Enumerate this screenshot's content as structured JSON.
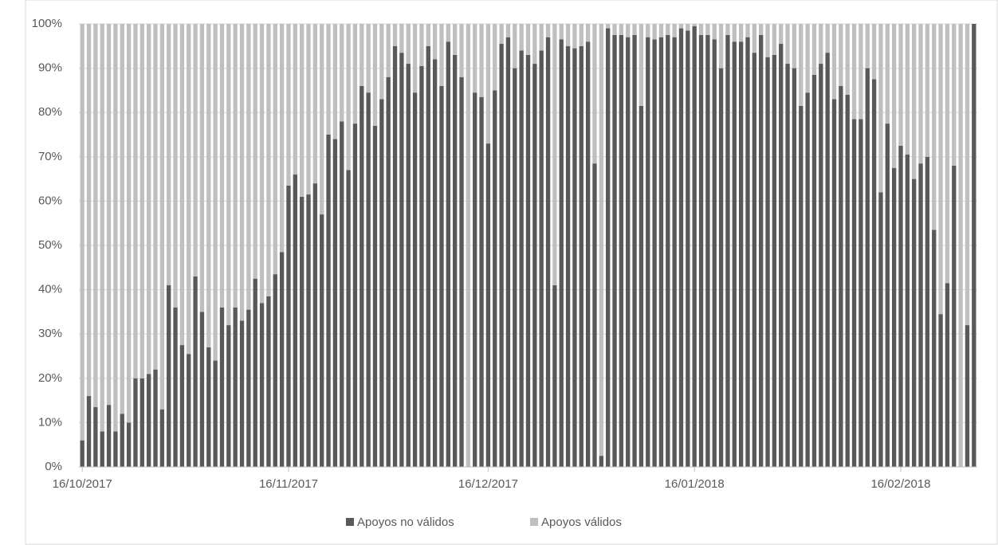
{
  "chart_data": {
    "type": "stacked_bar",
    "categories": [
      "16/10/2017",
      null,
      null,
      null,
      null,
      null,
      null,
      null,
      null,
      null,
      null,
      null,
      null,
      null,
      null,
      null,
      null,
      null,
      null,
      null,
      null,
      null,
      null,
      null,
      null,
      null,
      null,
      null,
      null,
      null,
      null,
      "16/11/2017",
      null,
      null,
      null,
      null,
      null,
      null,
      null,
      null,
      null,
      null,
      null,
      null,
      null,
      null,
      null,
      null,
      null,
      null,
      null,
      null,
      null,
      null,
      null,
      null,
      null,
      null,
      null,
      null,
      null,
      "16/12/2017",
      null,
      null,
      null,
      null,
      null,
      null,
      null,
      null,
      null,
      null,
      null,
      null,
      null,
      null,
      null,
      null,
      null,
      null,
      null,
      null,
      null,
      null,
      null,
      null,
      null,
      null,
      null,
      null,
      null,
      null,
      "16/01/2018",
      null,
      null,
      null,
      null,
      null,
      null,
      null,
      null,
      null,
      null,
      null,
      null,
      null,
      null,
      null,
      null,
      null,
      null,
      null,
      null,
      null,
      null,
      null,
      null,
      null,
      null,
      null,
      null,
      null,
      null,
      "16/02/2018",
      null,
      null,
      null,
      null,
      null,
      null,
      null,
      null,
      null,
      null,
      null
    ],
    "series": [
      {
        "name": "Apoyos no válidos",
        "color": "#595959",
        "values": [
          6,
          16,
          13.5,
          8,
          14,
          8,
          12,
          10,
          20,
          20,
          21,
          22,
          13,
          41,
          36,
          27.5,
          25.5,
          43,
          35,
          27,
          24,
          36,
          32,
          36,
          33,
          35.5,
          42.5,
          37,
          38.5,
          43.5,
          48.5,
          63.5,
          66,
          61,
          61.5,
          64,
          57,
          75,
          74,
          78,
          67,
          77.5,
          86,
          84.5,
          77,
          83,
          88,
          95,
          93.5,
          91,
          84.5,
          90.5,
          95,
          92,
          86,
          96,
          93,
          88,
          0,
          84.5,
          83.5,
          73,
          85,
          95.5,
          97,
          90,
          94,
          93,
          91,
          94,
          97,
          41,
          96.5,
          95,
          94.5,
          95,
          96,
          68.5,
          2.5,
          99,
          97.5,
          97.5,
          97,
          97.5,
          81.5,
          97,
          96.5,
          97,
          97.5,
          97,
          99,
          98.5,
          99.5,
          97.5,
          97.5,
          96.5,
          90,
          97.5,
          96,
          96,
          97,
          93.5,
          97.5,
          92.5,
          93,
          95.5,
          91,
          90,
          81.5,
          84.5,
          88.5,
          91,
          93.5,
          83,
          86,
          84,
          78.5,
          78.5,
          90,
          87.5,
          62,
          77.5,
          67.5,
          72.5,
          70.5,
          65,
          68.5,
          70,
          53.5,
          34.5,
          41.5,
          68,
          0,
          32,
          100
        ]
      },
      {
        "name": "Apoyos válidos",
        "color": "#bfbfbf",
        "values": [
          94,
          84,
          86.5,
          92,
          86,
          92,
          88,
          90,
          80,
          80,
          79,
          78,
          87,
          59,
          64,
          72.5,
          74.5,
          57,
          65,
          73,
          76,
          64,
          68,
          64,
          67,
          64.5,
          57.5,
          63,
          61.5,
          56.5,
          51.5,
          36.5,
          34,
          39,
          38.5,
          36,
          43,
          25,
          26,
          22,
          33,
          22.5,
          14,
          15.5,
          23,
          17,
          12,
          5,
          6.5,
          9,
          15.5,
          9.5,
          5,
          8,
          14,
          4,
          7,
          12,
          100,
          15.5,
          16.5,
          27,
          15,
          4.5,
          3,
          10,
          6,
          7,
          9,
          6,
          3,
          59,
          3.5,
          5,
          5.5,
          5,
          4,
          31.5,
          97.5,
          1,
          2.5,
          2.5,
          3,
          2.5,
          18.5,
          3,
          3.5,
          3,
          2.5,
          3,
          1,
          1.5,
          0.5,
          2.5,
          2.5,
          3.5,
          10,
          2.5,
          4,
          4,
          3,
          6.5,
          2.5,
          7.5,
          7,
          4.5,
          9,
          10,
          18.5,
          15.5,
          11.5,
          9,
          6.5,
          17,
          14,
          16,
          21.5,
          21.5,
          10,
          12.5,
          38,
          22.5,
          32.5,
          27.5,
          29.5,
          35,
          31.5,
          30,
          46.5,
          65.5,
          58.5,
          32,
          100,
          68,
          0
        ]
      }
    ],
    "ylim": [
      0,
      100
    ],
    "yticks": [
      {
        "value": 0,
        "label": "0%"
      },
      {
        "value": 10,
        "label": "10%"
      },
      {
        "value": 20,
        "label": "20%"
      },
      {
        "value": 30,
        "label": "30%"
      },
      {
        "value": 40,
        "label": "40%"
      },
      {
        "value": 50,
        "label": "50%"
      },
      {
        "value": 60,
        "label": "60%"
      },
      {
        "value": 70,
        "label": "70%"
      },
      {
        "value": 80,
        "label": "80%"
      },
      {
        "value": 90,
        "label": "90%"
      },
      {
        "value": 100,
        "label": "100%"
      }
    ],
    "grid": true,
    "legend": "bottom"
  }
}
